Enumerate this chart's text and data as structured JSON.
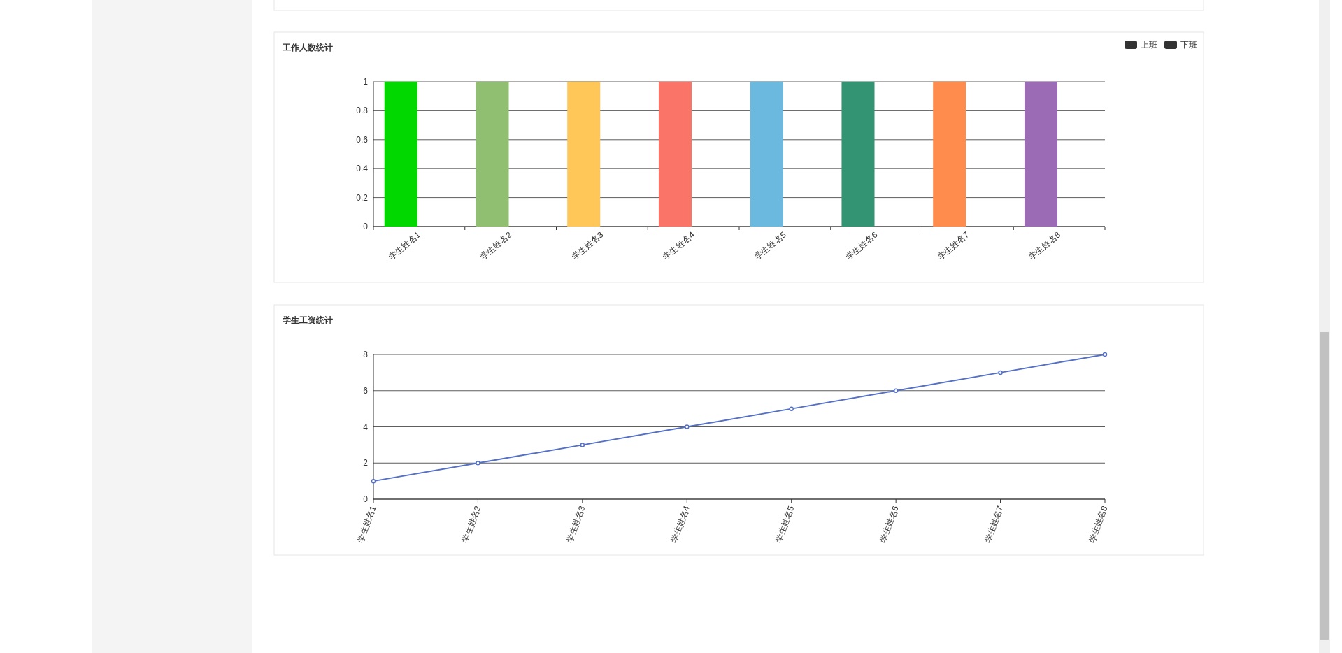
{
  "chart_data": [
    {
      "type": "bar",
      "title": "工作人数统计",
      "categories": [
        "学生姓名1",
        "学生姓名2",
        "学生姓名3",
        "学生姓名4",
        "学生姓名5",
        "学生姓名6",
        "学生姓名7",
        "学生姓名8"
      ],
      "series": [
        {
          "name": "上班",
          "color": "#333333",
          "colors": [
            "#00d800",
            "#91bf72",
            "#ffc658",
            "#fa7568",
            "#6cb9e0",
            "#339474",
            "#ff8c4d",
            "#9b6bb5"
          ],
          "values": [
            1,
            1,
            1,
            1,
            1,
            1,
            1,
            1
          ]
        },
        {
          "name": "下班",
          "color": "#333333",
          "values": [
            0,
            0,
            0,
            0,
            0,
            0,
            0,
            0
          ]
        }
      ],
      "ylim": [
        0,
        1
      ],
      "yticks": [
        0,
        0.2,
        0.4,
        0.6,
        0.8,
        1
      ],
      "grid": "y",
      "legend": "top right"
    },
    {
      "type": "line",
      "title": "学生工资统计",
      "categories": [
        "学生姓名1",
        "学生姓名2",
        "学生姓名3",
        "学生姓名4",
        "学生姓名5",
        "学生姓名6",
        "学生姓名7",
        "学生姓名8"
      ],
      "series": [
        {
          "color": "#5470c6",
          "values": [
            1,
            2,
            3,
            4,
            5,
            6,
            7,
            8
          ]
        }
      ],
      "ylim": [
        0,
        8
      ],
      "yticks": [
        0,
        2,
        4,
        6,
        8
      ],
      "grid": "y",
      "marker": "circle",
      "line_style": "solid"
    }
  ]
}
